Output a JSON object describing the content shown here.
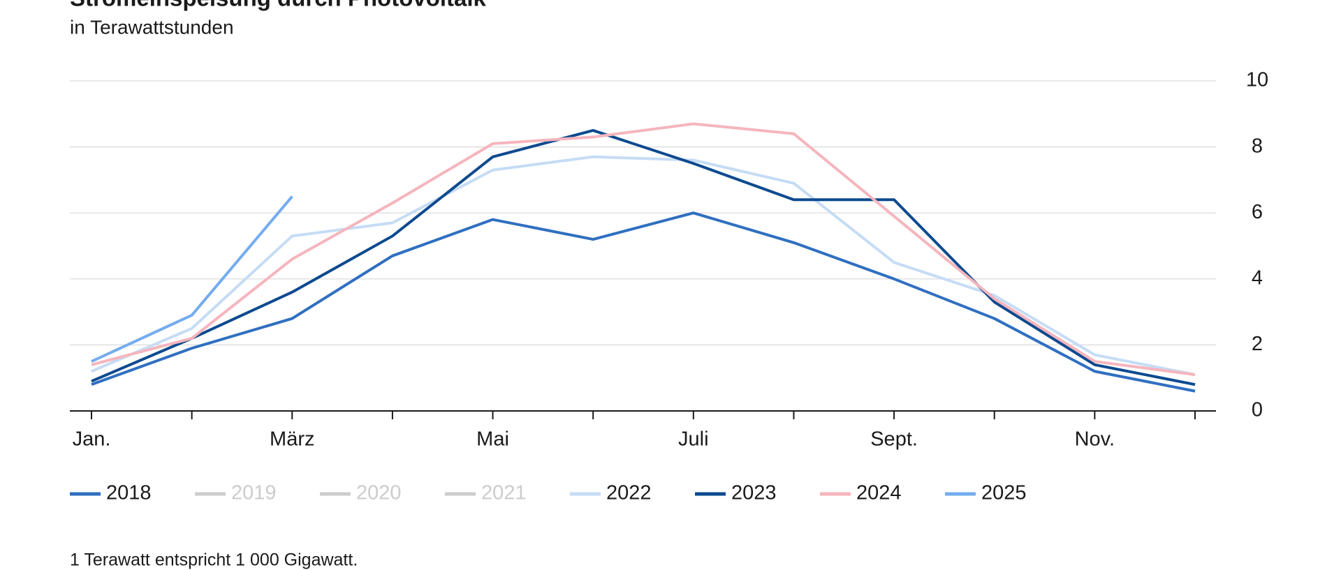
{
  "chart_data": {
    "type": "line",
    "title": "Stromeinspeisung durch Photovoltaik",
    "subtitle": "in Terawattstunden",
    "footnote": "1 Terawatt entspricht 1 000 Gigawatt.",
    "categories": [
      "Jan.",
      null,
      "März",
      null,
      "Mai",
      null,
      "Juli",
      null,
      "Sept.",
      null,
      "Nov.",
      null
    ],
    "ylim": [
      0,
      10
    ],
    "yticks": [
      0,
      2,
      4,
      6,
      8,
      10
    ],
    "grid": true,
    "series": [
      {
        "name": "2018",
        "color": "#2f6fc0",
        "values": [
          0.8,
          1.9,
          2.8,
          4.7,
          5.8,
          5.2,
          6.0,
          5.1,
          4.0,
          2.8,
          1.2,
          0.6
        ]
      },
      {
        "name": "2019",
        "color": "#cccccc",
        "hidden": true
      },
      {
        "name": "2020",
        "color": "#cccccc",
        "hidden": true
      },
      {
        "name": "2021",
        "color": "#cccccc",
        "hidden": true
      },
      {
        "name": "2022",
        "color": "#c6dcf5",
        "values": [
          1.2,
          2.5,
          5.3,
          5.7,
          7.3,
          7.7,
          7.6,
          6.9,
          4.5,
          3.5,
          1.7,
          1.1
        ]
      },
      {
        "name": "2023",
        "color": "#0d4a8f",
        "values": [
          0.9,
          2.2,
          3.6,
          5.3,
          7.7,
          8.5,
          7.5,
          6.4,
          6.4,
          3.3,
          1.4,
          0.8
        ]
      },
      {
        "name": "2024",
        "color": "#f5b5bd",
        "values": [
          1.4,
          2.2,
          4.6,
          6.3,
          8.1,
          8.3,
          8.7,
          8.4,
          5.9,
          3.4,
          1.5,
          1.1
        ]
      },
      {
        "name": "2025",
        "color": "#74acef",
        "values": [
          1.5,
          2.9,
          6.5,
          null,
          null,
          null,
          null,
          null,
          null,
          null,
          null,
          null
        ]
      }
    ]
  }
}
